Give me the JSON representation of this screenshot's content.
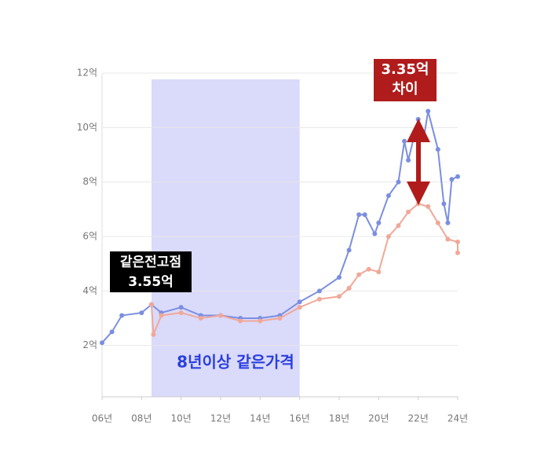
{
  "chart_data": {
    "type": "line",
    "xlim": [
      6,
      24
    ],
    "xticks": [
      {
        "value": 6,
        "label": "06년"
      },
      {
        "value": 8,
        "label": "08년"
      },
      {
        "value": 10,
        "label": "10년"
      },
      {
        "value": 12,
        "label": "12년"
      },
      {
        "value": 14,
        "label": "14년"
      },
      {
        "value": 16,
        "label": "16년"
      },
      {
        "value": 18,
        "label": "18년"
      },
      {
        "value": 20,
        "label": "20년"
      },
      {
        "value": 22,
        "label": "22년"
      },
      {
        "value": 24,
        "label": "24년"
      }
    ],
    "ylim": [
      0,
      12
    ],
    "yticks": [
      {
        "value": 2,
        "label": "2억"
      },
      {
        "value": 4,
        "label": "4억"
      },
      {
        "value": 6,
        "label": "6억"
      },
      {
        "value": 8,
        "label": "8억"
      },
      {
        "value": 10,
        "label": "10억"
      },
      {
        "value": 12,
        "label": "12억"
      }
    ],
    "grid": true,
    "highlight": {
      "xlim": [
        8.5,
        16
      ],
      "color": "#d4d4fa"
    },
    "series": [
      {
        "color": "#7b8ee0",
        "x": [
          6,
          6.5,
          7,
          8,
          8.5,
          9,
          10,
          11,
          12,
          13,
          14,
          15,
          16,
          17,
          18,
          18.5,
          19,
          19.3,
          19.8,
          20,
          20.5,
          21,
          21.3,
          21.5,
          22,
          22.3,
          22.5,
          23,
          23.3,
          23.5,
          23.7,
          24
        ],
        "values": [
          2.1,
          2.5,
          3.1,
          3.2,
          3.5,
          3.2,
          3.4,
          3.1,
          3.1,
          3.0,
          3.0,
          3.1,
          3.6,
          4.0,
          4.5,
          5.5,
          6.8,
          6.8,
          6.1,
          6.5,
          7.5,
          8.0,
          9.5,
          8.8,
          10.3,
          9.7,
          10.6,
          9.2,
          7.2,
          6.5,
          8.1,
          8.2
        ]
      },
      {
        "color": "#f0a898",
        "x": [
          8.5,
          8.6,
          9,
          10,
          11,
          12,
          13,
          14,
          15,
          16,
          17,
          18,
          18.5,
          19,
          19.5,
          20,
          20.5,
          21,
          21.5,
          22,
          22.5,
          23,
          23.5,
          24,
          24
        ],
        "values": [
          3.5,
          2.4,
          3.1,
          3.2,
          3.0,
          3.1,
          2.9,
          2.9,
          3.0,
          3.4,
          3.7,
          3.8,
          4.1,
          4.6,
          4.8,
          4.7,
          6.0,
          6.4,
          6.9,
          7.2,
          7.1,
          6.5,
          5.9,
          5.8,
          5.4
        ]
      }
    ],
    "annotations": [
      {
        "lines": [
          "3.35억",
          "차이"
        ],
        "color": "#b01c1c"
      },
      {
        "lines": [
          "같은전고점",
          "3.55억"
        ],
        "color": "#000000"
      },
      {
        "lines": [
          "8년이상 같은가격"
        ],
        "color": "#2a3fe0"
      }
    ]
  }
}
